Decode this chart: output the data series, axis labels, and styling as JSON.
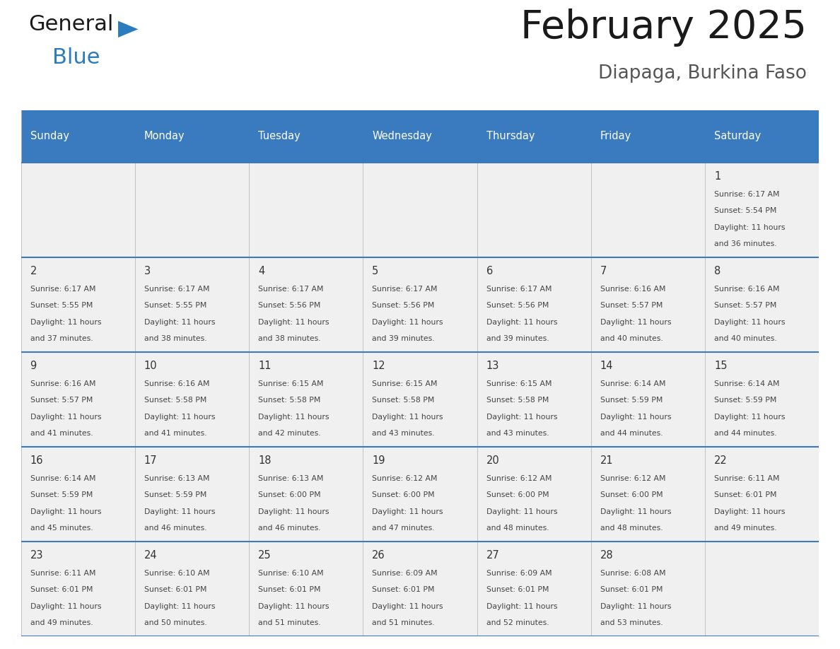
{
  "title": "February 2025",
  "subtitle": "Diapaga, Burkina Faso",
  "header_bg": "#3a7bbf",
  "header_text": "#ffffff",
  "cell_bg": "#f0f0f0",
  "border_color": "#3a7bbf",
  "text_color": "#444444",
  "day_num_color": "#333333",
  "day_names": [
    "Sunday",
    "Monday",
    "Tuesday",
    "Wednesday",
    "Thursday",
    "Friday",
    "Saturday"
  ],
  "days": [
    {
      "day": 1,
      "col": 6,
      "row": 0,
      "sunrise": "6:17 AM",
      "sunset": "5:54 PM",
      "daylight": "11 hours and 36 minutes."
    },
    {
      "day": 2,
      "col": 0,
      "row": 1,
      "sunrise": "6:17 AM",
      "sunset": "5:55 PM",
      "daylight": "11 hours and 37 minutes."
    },
    {
      "day": 3,
      "col": 1,
      "row": 1,
      "sunrise": "6:17 AM",
      "sunset": "5:55 PM",
      "daylight": "11 hours and 38 minutes."
    },
    {
      "day": 4,
      "col": 2,
      "row": 1,
      "sunrise": "6:17 AM",
      "sunset": "5:56 PM",
      "daylight": "11 hours and 38 minutes."
    },
    {
      "day": 5,
      "col": 3,
      "row": 1,
      "sunrise": "6:17 AM",
      "sunset": "5:56 PM",
      "daylight": "11 hours and 39 minutes."
    },
    {
      "day": 6,
      "col": 4,
      "row": 1,
      "sunrise": "6:17 AM",
      "sunset": "5:56 PM",
      "daylight": "11 hours and 39 minutes."
    },
    {
      "day": 7,
      "col": 5,
      "row": 1,
      "sunrise": "6:16 AM",
      "sunset": "5:57 PM",
      "daylight": "11 hours and 40 minutes."
    },
    {
      "day": 8,
      "col": 6,
      "row": 1,
      "sunrise": "6:16 AM",
      "sunset": "5:57 PM",
      "daylight": "11 hours and 40 minutes."
    },
    {
      "day": 9,
      "col": 0,
      "row": 2,
      "sunrise": "6:16 AM",
      "sunset": "5:57 PM",
      "daylight": "11 hours and 41 minutes."
    },
    {
      "day": 10,
      "col": 1,
      "row": 2,
      "sunrise": "6:16 AM",
      "sunset": "5:58 PM",
      "daylight": "11 hours and 41 minutes."
    },
    {
      "day": 11,
      "col": 2,
      "row": 2,
      "sunrise": "6:15 AM",
      "sunset": "5:58 PM",
      "daylight": "11 hours and 42 minutes."
    },
    {
      "day": 12,
      "col": 3,
      "row": 2,
      "sunrise": "6:15 AM",
      "sunset": "5:58 PM",
      "daylight": "11 hours and 43 minutes."
    },
    {
      "day": 13,
      "col": 4,
      "row": 2,
      "sunrise": "6:15 AM",
      "sunset": "5:58 PM",
      "daylight": "11 hours and 43 minutes."
    },
    {
      "day": 14,
      "col": 5,
      "row": 2,
      "sunrise": "6:14 AM",
      "sunset": "5:59 PM",
      "daylight": "11 hours and 44 minutes."
    },
    {
      "day": 15,
      "col": 6,
      "row": 2,
      "sunrise": "6:14 AM",
      "sunset": "5:59 PM",
      "daylight": "11 hours and 44 minutes."
    },
    {
      "day": 16,
      "col": 0,
      "row": 3,
      "sunrise": "6:14 AM",
      "sunset": "5:59 PM",
      "daylight": "11 hours and 45 minutes."
    },
    {
      "day": 17,
      "col": 1,
      "row": 3,
      "sunrise": "6:13 AM",
      "sunset": "5:59 PM",
      "daylight": "11 hours and 46 minutes."
    },
    {
      "day": 18,
      "col": 2,
      "row": 3,
      "sunrise": "6:13 AM",
      "sunset": "6:00 PM",
      "daylight": "11 hours and 46 minutes."
    },
    {
      "day": 19,
      "col": 3,
      "row": 3,
      "sunrise": "6:12 AM",
      "sunset": "6:00 PM",
      "daylight": "11 hours and 47 minutes."
    },
    {
      "day": 20,
      "col": 4,
      "row": 3,
      "sunrise": "6:12 AM",
      "sunset": "6:00 PM",
      "daylight": "11 hours and 48 minutes."
    },
    {
      "day": 21,
      "col": 5,
      "row": 3,
      "sunrise": "6:12 AM",
      "sunset": "6:00 PM",
      "daylight": "11 hours and 48 minutes."
    },
    {
      "day": 22,
      "col": 6,
      "row": 3,
      "sunrise": "6:11 AM",
      "sunset": "6:01 PM",
      "daylight": "11 hours and 49 minutes."
    },
    {
      "day": 23,
      "col": 0,
      "row": 4,
      "sunrise": "6:11 AM",
      "sunset": "6:01 PM",
      "daylight": "11 hours and 49 minutes."
    },
    {
      "day": 24,
      "col": 1,
      "row": 4,
      "sunrise": "6:10 AM",
      "sunset": "6:01 PM",
      "daylight": "11 hours and 50 minutes."
    },
    {
      "day": 25,
      "col": 2,
      "row": 4,
      "sunrise": "6:10 AM",
      "sunset": "6:01 PM",
      "daylight": "11 hours and 51 minutes."
    },
    {
      "day": 26,
      "col": 3,
      "row": 4,
      "sunrise": "6:09 AM",
      "sunset": "6:01 PM",
      "daylight": "11 hours and 51 minutes."
    },
    {
      "day": 27,
      "col": 4,
      "row": 4,
      "sunrise": "6:09 AM",
      "sunset": "6:01 PM",
      "daylight": "11 hours and 52 minutes."
    },
    {
      "day": 28,
      "col": 5,
      "row": 4,
      "sunrise": "6:08 AM",
      "sunset": "6:01 PM",
      "daylight": "11 hours and 53 minutes."
    }
  ],
  "num_rows": 5
}
